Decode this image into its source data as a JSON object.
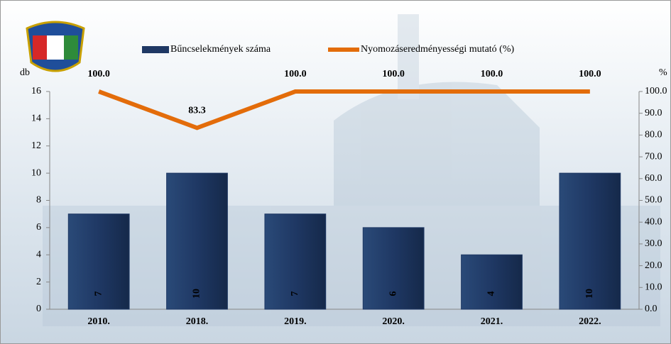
{
  "chart_data": {
    "type": "bar-line",
    "y_label": "db",
    "y2_label": "%",
    "categories": [
      "2010.",
      "2018.",
      "2019.",
      "2020.",
      "2021.",
      "2022."
    ],
    "series": [
      {
        "name": "Bűncselekmények száma",
        "type": "bar",
        "color": "#1f3864",
        "axis": "y",
        "values": [
          7,
          10,
          7,
          6,
          4,
          10
        ]
      },
      {
        "name": "Nyomozáseredményességi mutató (%)",
        "type": "line",
        "color": "#e36c0a",
        "axis": "y2",
        "values": [
          100,
          83.3,
          100,
          100,
          100,
          100
        ],
        "value_labels": [
          "100.0",
          "83.3",
          "100.0",
          "100.0",
          "100.0",
          "100.0"
        ]
      }
    ],
    "ylim": [
      0,
      16
    ],
    "yticks": [
      0,
      2,
      4,
      6,
      8,
      10,
      12,
      14,
      16
    ],
    "y2lim": [
      0,
      100
    ],
    "y2ticks": [
      {
        "value": 0,
        "label": "0.0"
      },
      {
        "value": 10,
        "label": "10.0"
      },
      {
        "value": 20,
        "label": "20.0"
      },
      {
        "value": 30,
        "label": "30.0"
      },
      {
        "value": 40,
        "label": "40.0"
      },
      {
        "value": 50,
        "label": "50.0"
      },
      {
        "value": 60,
        "label": "60.0"
      },
      {
        "value": 70,
        "label": "70.0"
      },
      {
        "value": 80,
        "label": "80.0"
      },
      {
        "value": 90,
        "label": "90.0"
      },
      {
        "value": 100,
        "label": "100.0"
      }
    ],
    "grid": false,
    "legend": "top"
  }
}
